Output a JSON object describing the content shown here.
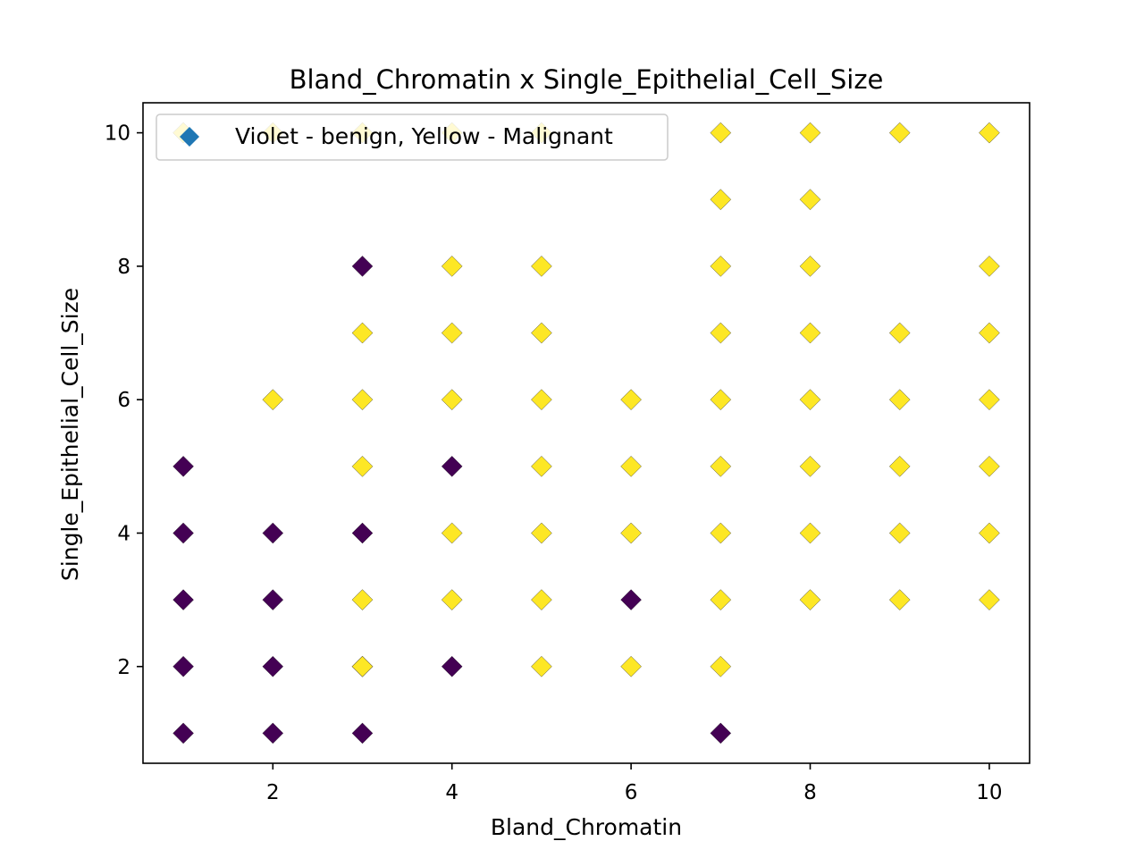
{
  "chart_data": {
    "type": "scatter",
    "title": "Bland_Chromatin x Single_Epithelial_Cell_Size",
    "xlabel": "Bland_Chromatin",
    "ylabel": "Single_Epithelial_Cell_Size",
    "xlim": [
      0.55,
      10.45
    ],
    "ylim": [
      0.55,
      10.45
    ],
    "xticks": [
      2,
      4,
      6,
      8,
      10
    ],
    "yticks": [
      2,
      4,
      6,
      8,
      10
    ],
    "marker": "diamond",
    "grid": false,
    "legend": {
      "label": "Violet - benign, Yellow - Malignant",
      "placement": "upper-left",
      "marker_color": "#1f77b4"
    },
    "series": [
      {
        "color": "#440154",
        "points": [
          [
            1,
            1
          ],
          [
            1,
            2
          ],
          [
            1,
            3
          ],
          [
            1,
            4
          ],
          [
            1,
            5
          ],
          [
            2,
            1
          ],
          [
            2,
            2
          ],
          [
            2,
            3
          ],
          [
            2,
            4
          ],
          [
            3,
            1
          ],
          [
            3,
            2
          ],
          [
            3,
            4
          ],
          [
            3,
            8
          ],
          [
            4,
            2
          ],
          [
            4,
            5
          ],
          [
            6,
            3
          ],
          [
            7,
            1
          ]
        ]
      },
      {
        "color": "#fde725",
        "points": [
          [
            1,
            10
          ],
          [
            2,
            10
          ],
          [
            3,
            10
          ],
          [
            4,
            10
          ],
          [
            5,
            10
          ],
          [
            2,
            6
          ],
          [
            3,
            2
          ],
          [
            3,
            3
          ],
          [
            3,
            5
          ],
          [
            3,
            6
          ],
          [
            3,
            7
          ],
          [
            4,
            3
          ],
          [
            4,
            4
          ],
          [
            4,
            6
          ],
          [
            4,
            7
          ],
          [
            4,
            8
          ],
          [
            5,
            2
          ],
          [
            5,
            3
          ],
          [
            5,
            4
          ],
          [
            5,
            5
          ],
          [
            5,
            6
          ],
          [
            5,
            7
          ],
          [
            5,
            8
          ],
          [
            6,
            2
          ],
          [
            6,
            4
          ],
          [
            6,
            5
          ],
          [
            6,
            6
          ],
          [
            7,
            2
          ],
          [
            7,
            3
          ],
          [
            7,
            4
          ],
          [
            7,
            5
          ],
          [
            7,
            6
          ],
          [
            7,
            7
          ],
          [
            7,
            8
          ],
          [
            7,
            9
          ],
          [
            7,
            10
          ],
          [
            8,
            3
          ],
          [
            8,
            4
          ],
          [
            8,
            5
          ],
          [
            8,
            6
          ],
          [
            8,
            7
          ],
          [
            8,
            8
          ],
          [
            8,
            9
          ],
          [
            8,
            10
          ],
          [
            9,
            3
          ],
          [
            9,
            4
          ],
          [
            9,
            5
          ],
          [
            9,
            6
          ],
          [
            9,
            7
          ],
          [
            9,
            10
          ],
          [
            10,
            3
          ],
          [
            10,
            4
          ],
          [
            10,
            5
          ],
          [
            10,
            6
          ],
          [
            10,
            7
          ],
          [
            10,
            8
          ],
          [
            10,
            10
          ]
        ]
      }
    ]
  }
}
